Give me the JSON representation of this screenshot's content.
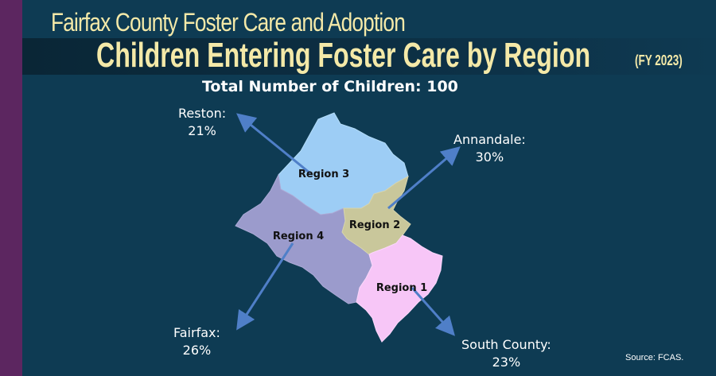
{
  "header": {
    "subtitle": "Fairfax County Foster Care and Adoption",
    "title": "Children Entering Foster Care by Region",
    "fiscal_year": "(FY 2023)",
    "total": "Total Number of Children: 100"
  },
  "regions": [
    {
      "label": "Region 1",
      "color": "#f7c6f7"
    },
    {
      "label": "Region 2",
      "color": "#c9c79b"
    },
    {
      "label": "Region 3",
      "color": "#9dcdf5"
    },
    {
      "label": "Region 4",
      "color": "#9b9bcc"
    }
  ],
  "callouts": {
    "reston": {
      "name": "Reston:",
      "pct": "21%"
    },
    "annandale": {
      "name": "Annandale:",
      "pct": "30%"
    },
    "fairfax": {
      "name": "Fairfax:",
      "pct": "26%"
    },
    "south_county": {
      "name": "South County:",
      "pct": "23%"
    }
  },
  "arrow_color": "#4f7fc8",
  "source": "Source: FCAS."
}
